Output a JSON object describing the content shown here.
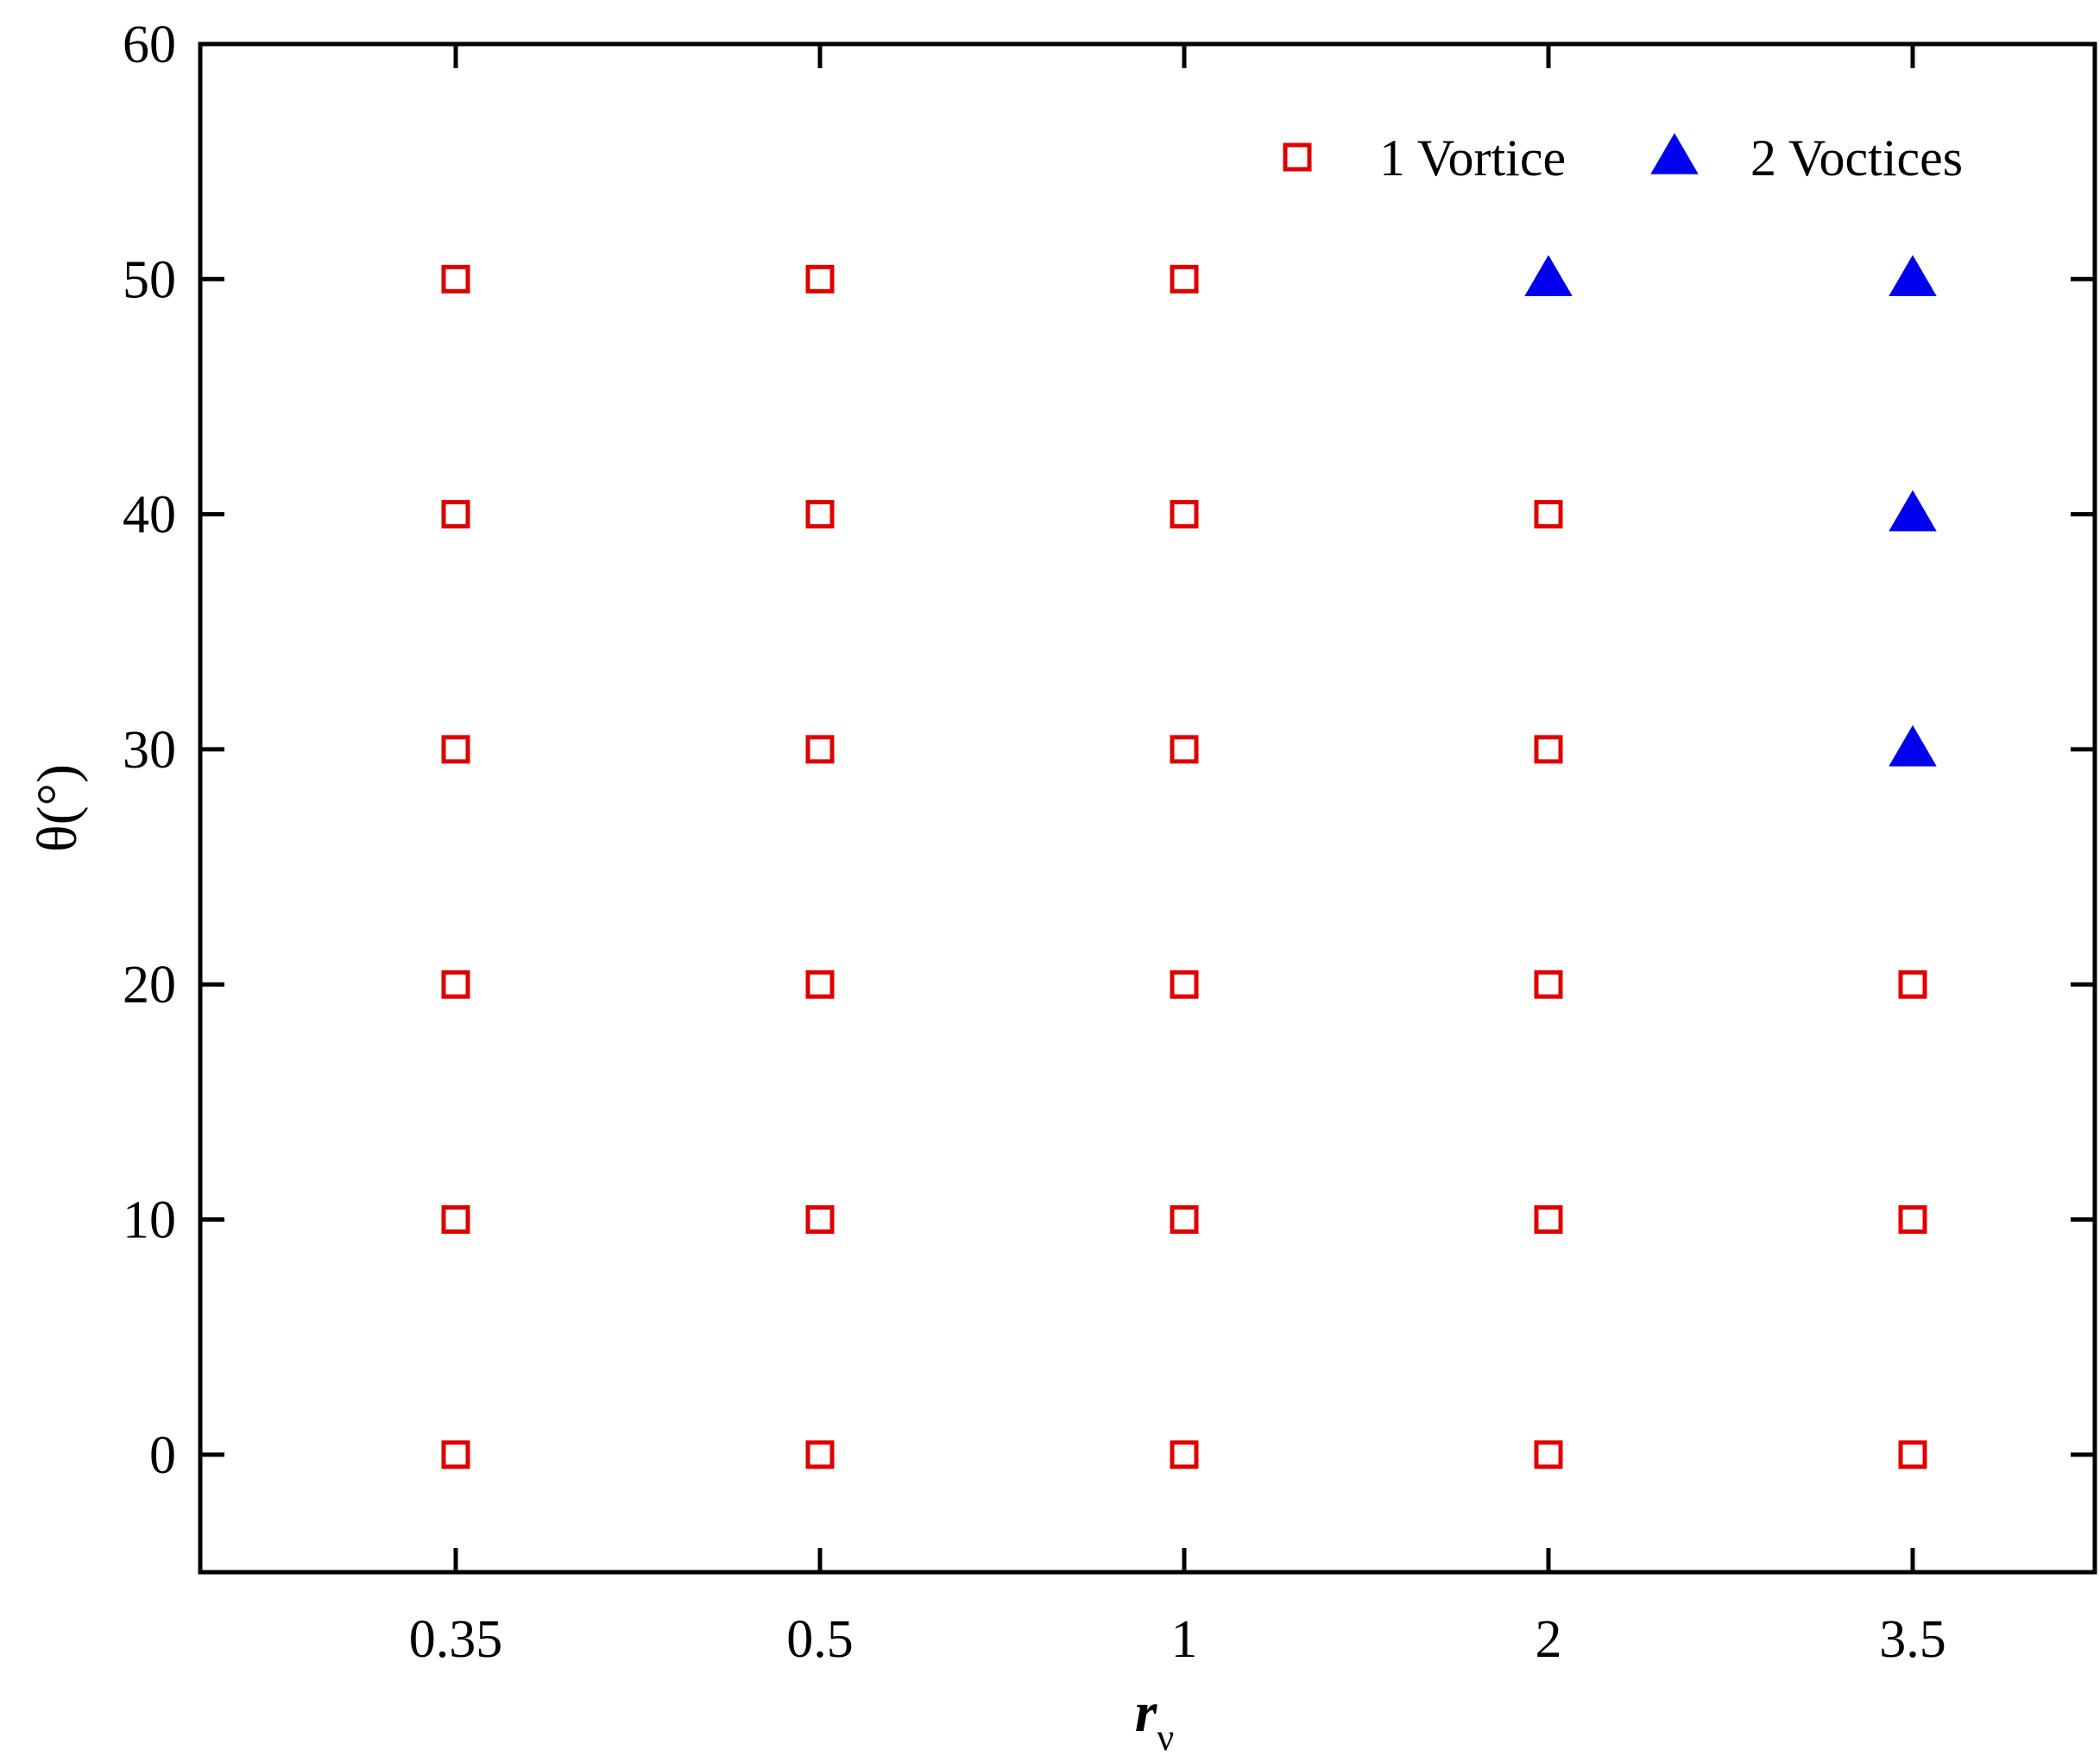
{
  "chart_data": {
    "type": "scatter",
    "title": "",
    "xlabel": "r",
    "xlabel_subscript": "ν",
    "ylabel": "θ(°)",
    "categories": [
      "0.35",
      "0.5",
      "1",
      "2",
      "3.5"
    ],
    "yticks": [
      0,
      10,
      20,
      30,
      40,
      50,
      60
    ],
    "ylim": [
      -5,
      60
    ],
    "grid": false,
    "legend_position": "top-right",
    "series": [
      {
        "name": "1 Vortice",
        "marker": "open-square",
        "color": "#e00000",
        "points": [
          {
            "x": "0.35",
            "y": 0
          },
          {
            "x": "0.35",
            "y": 10
          },
          {
            "x": "0.35",
            "y": 20
          },
          {
            "x": "0.35",
            "y": 30
          },
          {
            "x": "0.35",
            "y": 40
          },
          {
            "x": "0.35",
            "y": 50
          },
          {
            "x": "0.5",
            "y": 0
          },
          {
            "x": "0.5",
            "y": 10
          },
          {
            "x": "0.5",
            "y": 20
          },
          {
            "x": "0.5",
            "y": 30
          },
          {
            "x": "0.5",
            "y": 40
          },
          {
            "x": "0.5",
            "y": 50
          },
          {
            "x": "1",
            "y": 0
          },
          {
            "x": "1",
            "y": 10
          },
          {
            "x": "1",
            "y": 20
          },
          {
            "x": "1",
            "y": 30
          },
          {
            "x": "1",
            "y": 40
          },
          {
            "x": "1",
            "y": 50
          },
          {
            "x": "2",
            "y": 0
          },
          {
            "x": "2",
            "y": 10
          },
          {
            "x": "2",
            "y": 20
          },
          {
            "x": "2",
            "y": 30
          },
          {
            "x": "2",
            "y": 40
          },
          {
            "x": "3.5",
            "y": 0
          },
          {
            "x": "3.5",
            "y": 10
          },
          {
            "x": "3.5",
            "y": 20
          }
        ]
      },
      {
        "name": "2 Voctices",
        "marker": "filled-triangle",
        "color": "#0000ee",
        "points": [
          {
            "x": "2",
            "y": 50
          },
          {
            "x": "3.5",
            "y": 30
          },
          {
            "x": "3.5",
            "y": 40
          },
          {
            "x": "3.5",
            "y": 50
          }
        ]
      }
    ]
  }
}
